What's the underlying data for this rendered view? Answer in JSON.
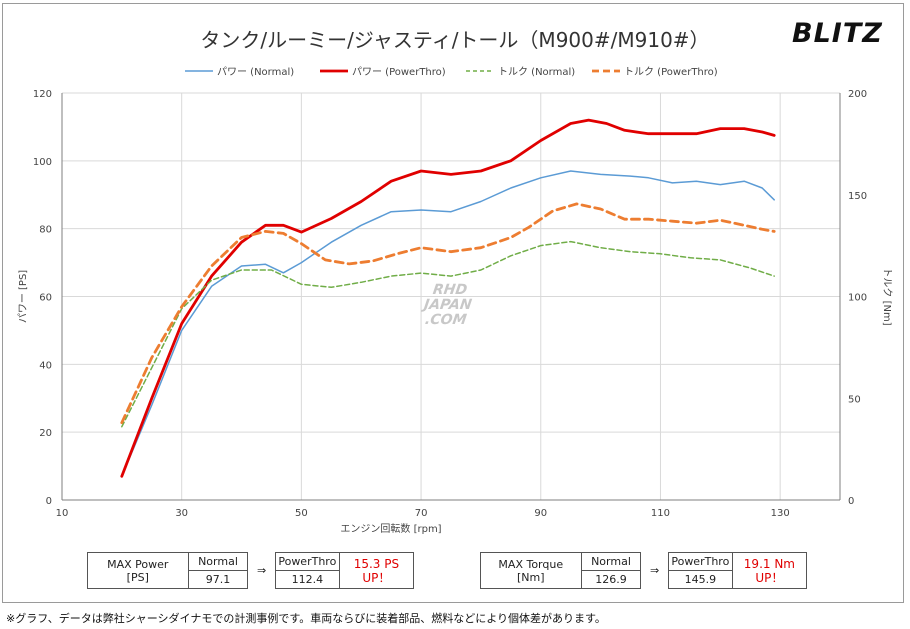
{
  "brand": "BLITZ",
  "watermark": [
    "RHD",
    "JAPAN",
    ".COM"
  ],
  "footnote": "※グラフ、データは弊社シャーシダイナモでの計測事例です。車両ならびに装着部品、燃料などにより個体差があります。",
  "max_power": {
    "label_line1": "MAX Power",
    "label_line2": "[PS]",
    "normal_header": "Normal",
    "normal_value": "97.1",
    "arrow": "⇒",
    "pt_header": "PowerThro",
    "pt_value": "112.4",
    "up_value": "15.3 PS",
    "up_label": "UP！"
  },
  "max_torque": {
    "label_line1": "MAX Torque",
    "label_line2": "[Nm]",
    "normal_header": "Normal",
    "normal_value": "126.9",
    "arrow": "⇒",
    "pt_header": "PowerThro",
    "pt_value": "145.9",
    "up_value": "19.1 Nm",
    "up_label": "UP！"
  },
  "chart_data": {
    "type": "line",
    "title": "タンク/ルーミー/ジャスティ/トール（M900#/M910#）",
    "xlabel": "エンジン回転数 [rpm]",
    "ylabel_left": "パワー [PS]",
    "ylabel_right": "トルク [Nm]",
    "xlim": [
      10,
      140
    ],
    "ylim_left": [
      0,
      120
    ],
    "ylim_right": [
      0,
      200
    ],
    "x_ticks": [
      10,
      30,
      50,
      70,
      90,
      110,
      130
    ],
    "x_tick_labels": [
      "10",
      "30",
      "50",
      "70",
      "90",
      "110",
      "130"
    ],
    "y_left_ticks": [
      0,
      20,
      40,
      60,
      80,
      100,
      120
    ],
    "y_left_tick_labels": [
      "0",
      "20",
      "40",
      "60",
      "80",
      "100",
      "120"
    ],
    "y_right_ticks": [
      0,
      50,
      100,
      150,
      200
    ],
    "y_right_tick_labels": [
      "0",
      "50",
      "100",
      "150",
      "200"
    ],
    "grid": true,
    "legend_position": "top-center",
    "series": [
      {
        "name": "パワー (Normal)",
        "axis": "left",
        "color": "#5b9bd5",
        "style": "solid",
        "x": [
          20,
          25,
          30,
          35,
          40,
          44,
          47,
          50,
          55,
          60,
          65,
          70,
          75,
          80,
          85,
          90,
          95,
          100,
          105,
          108,
          112,
          116,
          120,
          124,
          127,
          129
        ],
        "y": [
          7,
          28,
          50,
          63,
          69,
          69.5,
          67,
          70,
          76,
          81,
          85,
          85.5,
          85,
          88,
          92,
          95,
          97,
          96,
          95.5,
          95,
          93.5,
          94,
          93,
          94,
          92,
          88.5
        ]
      },
      {
        "name": "パワー (PowerThro)",
        "axis": "left",
        "color": "#e00000",
        "style": "solid",
        "x": [
          20,
          25,
          30,
          35,
          40,
          44,
          47,
          50,
          55,
          60,
          65,
          70,
          75,
          80,
          85,
          90,
          95,
          98,
          101,
          104,
          108,
          112,
          116,
          120,
          124,
          127,
          129
        ],
        "y": [
          7,
          30,
          52,
          66,
          76,
          81,
          81,
          79,
          83,
          88,
          94,
          97,
          96,
          97,
          100,
          106,
          111,
          112,
          111,
          109,
          108,
          108,
          108,
          109.5,
          109.5,
          108.5,
          107.5
        ]
      },
      {
        "name": "トルク (Normal)",
        "axis": "right",
        "color": "#70ad47",
        "style": "dashed",
        "x": [
          20,
          25,
          30,
          35,
          40,
          45,
          50,
          55,
          60,
          65,
          70,
          75,
          80,
          85,
          90,
          95,
          100,
          105,
          110,
          115,
          120,
          125,
          129
        ],
        "y": [
          36,
          65,
          94,
          108,
          113,
          113,
          106,
          104.5,
          107,
          110,
          111.5,
          110,
          113,
          120,
          125,
          127,
          124,
          122,
          121,
          119,
          118,
          114,
          110
        ]
      },
      {
        "name": "トルク (PowerThro)",
        "axis": "right",
        "color": "#ed7d31",
        "style": "dashed",
        "x": [
          20,
          25,
          30,
          35,
          40,
          44,
          47,
          50,
          54,
          58,
          62,
          66,
          70,
          75,
          80,
          85,
          88,
          92,
          96,
          100,
          104,
          108,
          112,
          116,
          120,
          124,
          127,
          129
        ],
        "y": [
          38,
          70,
          95,
          115,
          129,
          132,
          131,
          126,
          118,
          116,
          117.5,
          121,
          124,
          122,
          124,
          129,
          134,
          142,
          145.5,
          143,
          138,
          138,
          137,
          136,
          137.5,
          135,
          133,
          132
        ]
      }
    ]
  }
}
